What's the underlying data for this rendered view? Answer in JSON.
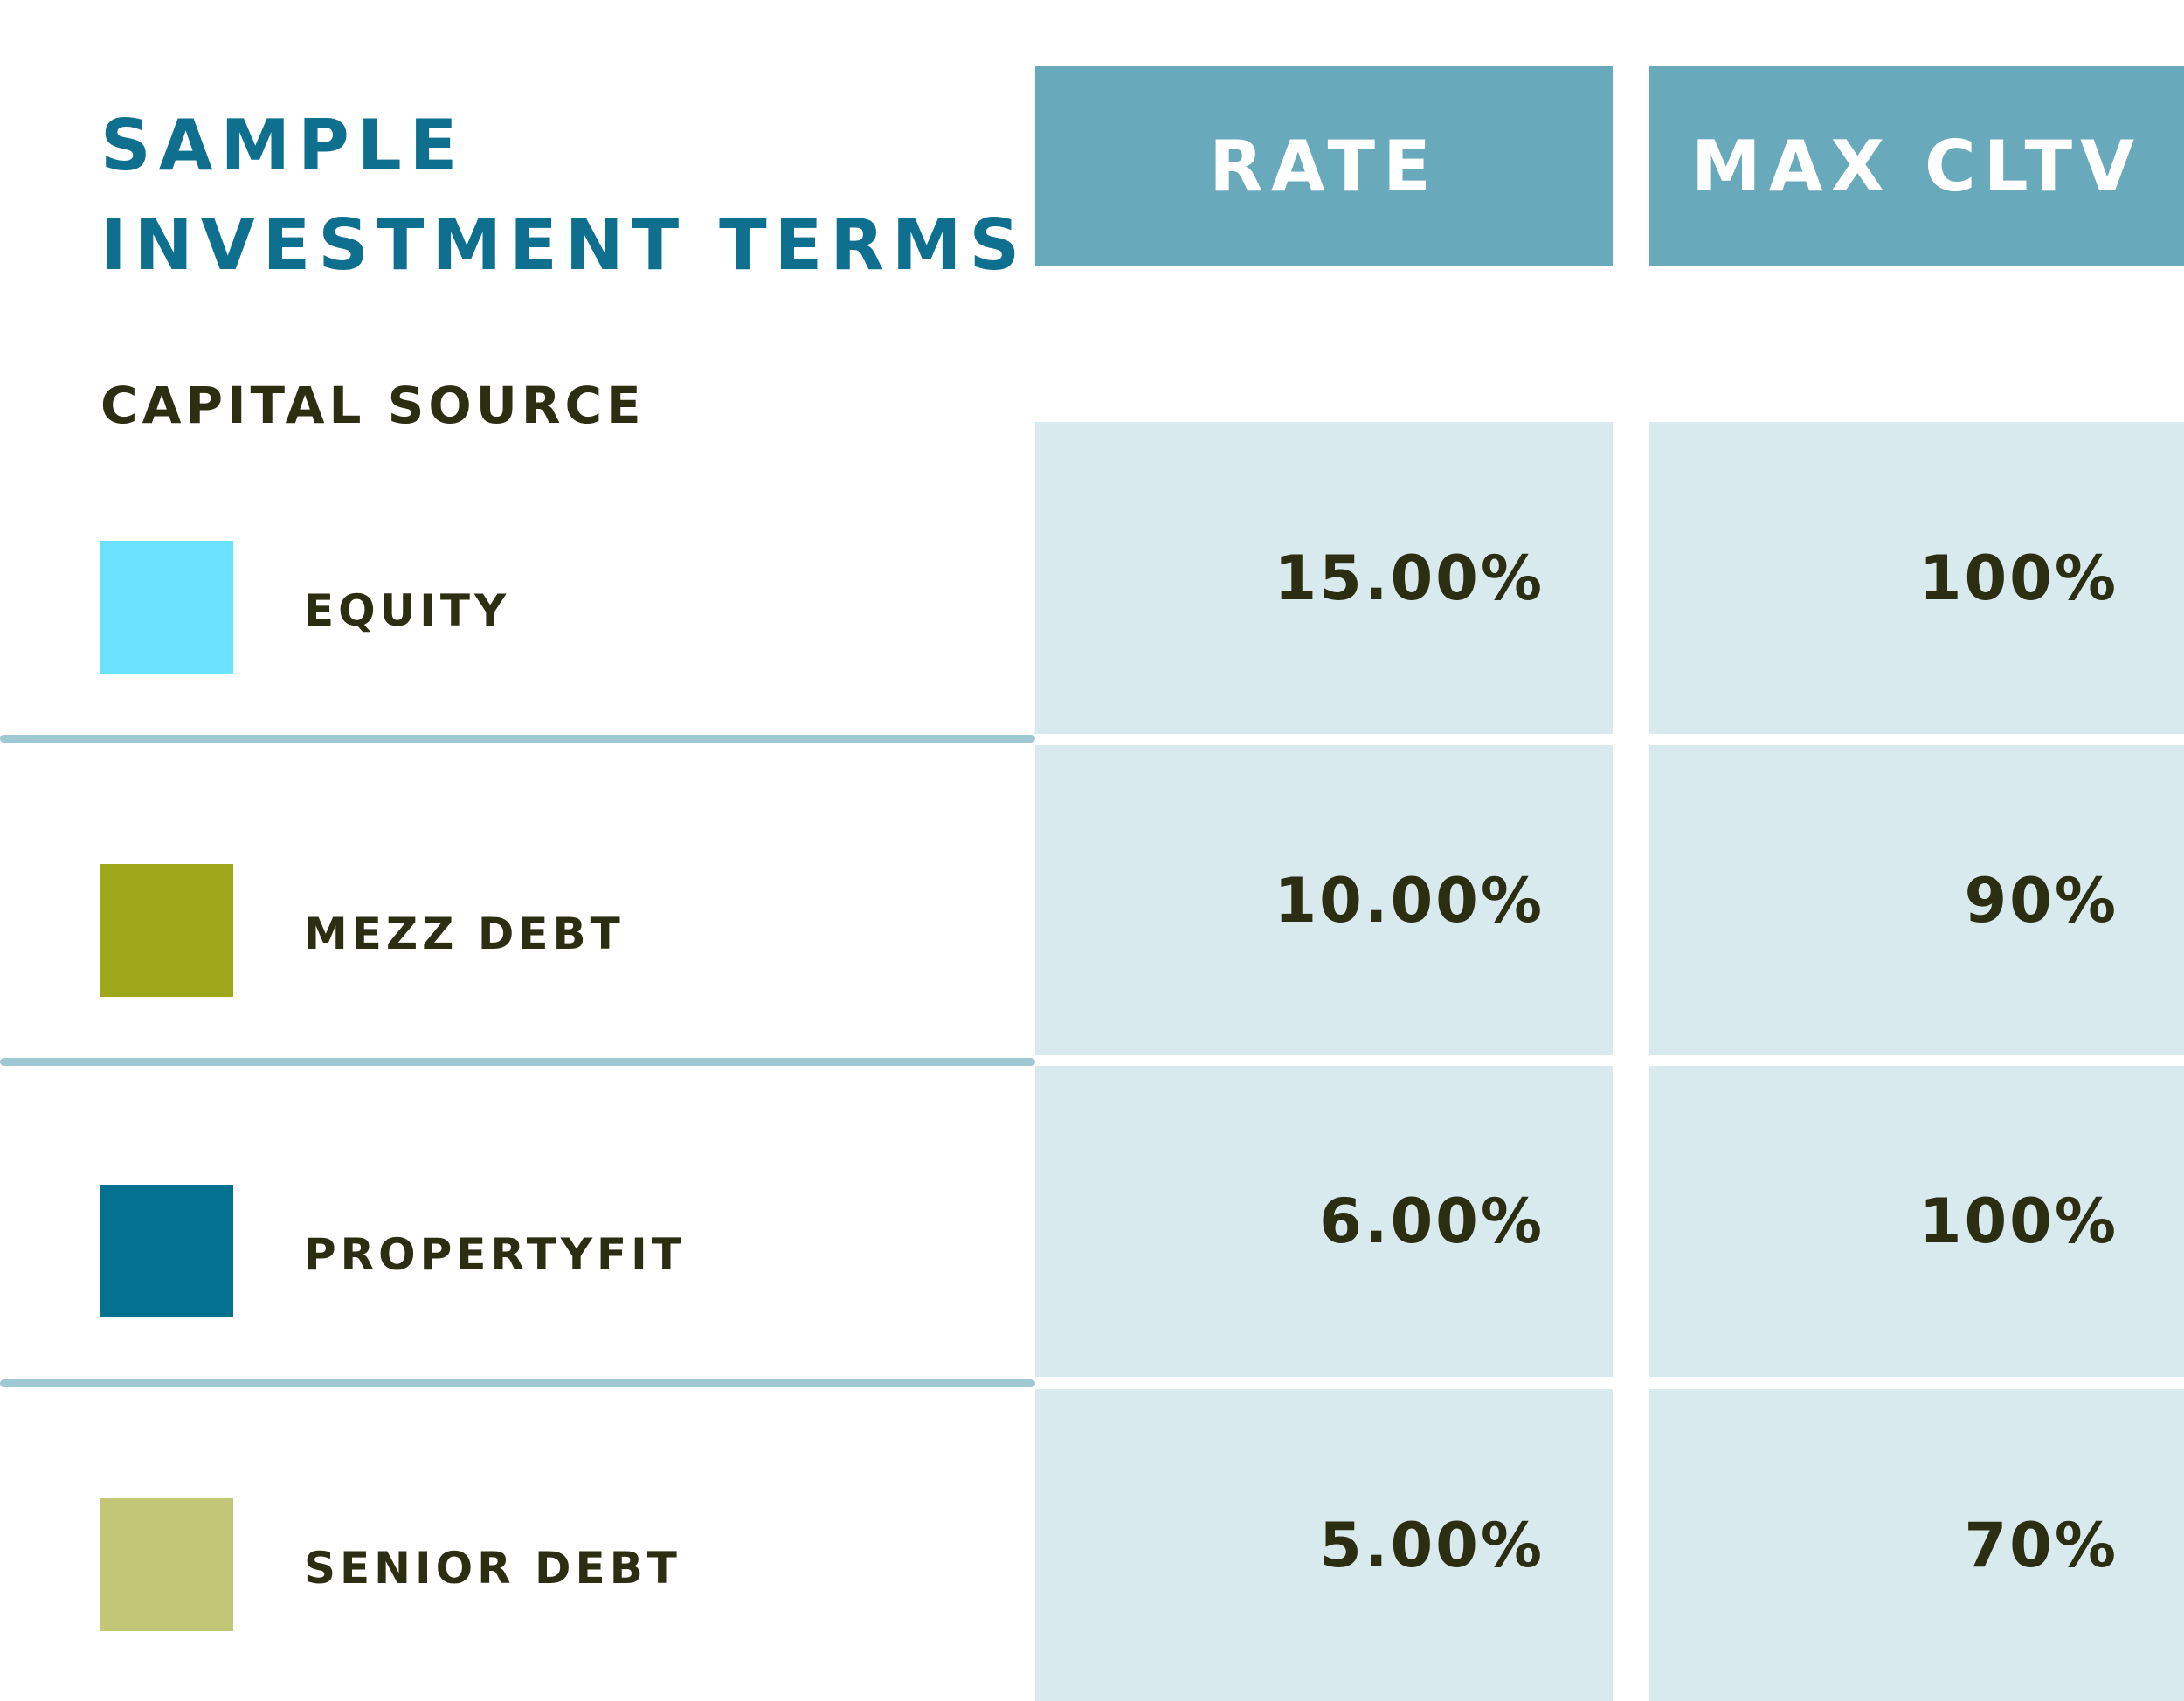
{
  "title": {
    "line1": "SAMPLE",
    "line2": "INVESTMENT TERMS"
  },
  "headers": {
    "rate": "RATE",
    "max_cltv": "MAX CLTV"
  },
  "row_header": "CAPITAL SOURCE",
  "colors": {
    "title": "#0f6f8e",
    "header_bg": "#69a9bc",
    "cell_bg": "#d9eaef",
    "divider": "#9ec8d2",
    "text": "#2c2e12"
  },
  "rows": [
    {
      "source": "EQUITY",
      "swatch_color": "#6be2ff",
      "rate": "15.00%",
      "max_cltv": "100%"
    },
    {
      "source": "MEZZ DEBT",
      "swatch_color": "#9fa81a",
      "rate": "10.00%",
      "max_cltv": "90%"
    },
    {
      "source": "PROPERTYFIT",
      "swatch_color": "#03718f",
      "rate": "6.00%",
      "max_cltv": "100%"
    },
    {
      "source": "SENIOR DEBT",
      "swatch_color": "#c2c677",
      "rate": "5.00%",
      "max_cltv": "70%"
    }
  ]
}
